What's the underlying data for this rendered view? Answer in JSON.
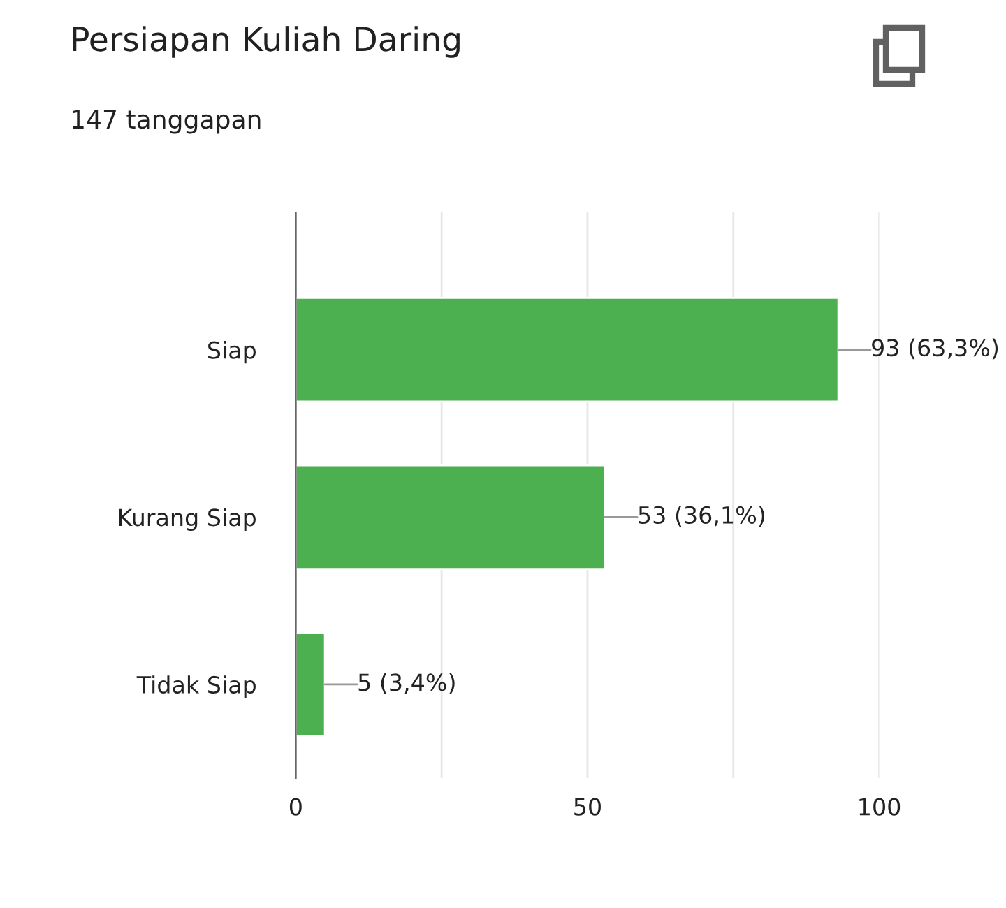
{
  "chart_data": {
    "type": "bar",
    "orientation": "horizontal",
    "title": "Persiapan Kuliah Daring",
    "subtitle": "147 tanggapan",
    "categories": [
      "Siap",
      "Kurang Siap",
      "Tidak Siap"
    ],
    "values": [
      93,
      53,
      5
    ],
    "value_labels": [
      "93 (63,3%)",
      "53 (36,1%)",
      "5 (3,4%)"
    ],
    "color": "#4caf50",
    "xlim": [
      0,
      100
    ],
    "xticks": [
      0,
      {
        "value": 25,
        "label": null
      },
      50,
      {
        "value": 75,
        "label": null
      },
      100
    ],
    "grid": "x",
    "legend": false
  }
}
